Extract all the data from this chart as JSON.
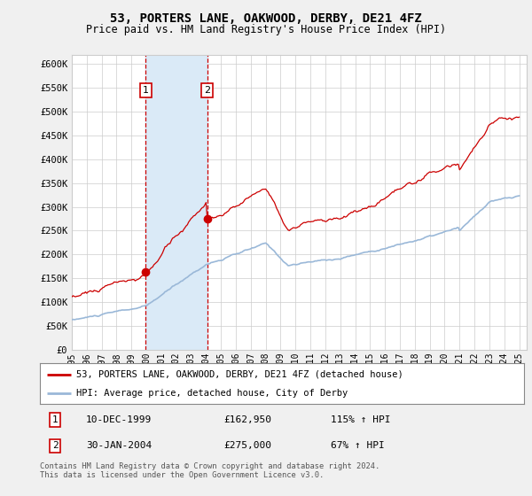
{
  "title": "53, PORTERS LANE, OAKWOOD, DERBY, DE21 4FZ",
  "subtitle": "Price paid vs. HM Land Registry's House Price Index (HPI)",
  "ylim": [
    0,
    620000
  ],
  "yticks": [
    0,
    50000,
    100000,
    150000,
    200000,
    250000,
    300000,
    350000,
    400000,
    450000,
    500000,
    550000,
    600000
  ],
  "ytick_labels": [
    "£0",
    "£50K",
    "£100K",
    "£150K",
    "£200K",
    "£250K",
    "£300K",
    "£350K",
    "£400K",
    "£450K",
    "£500K",
    "£550K",
    "£600K"
  ],
  "hpi_color": "#9ab8d8",
  "sale_color": "#cc0000",
  "purchase1_year": 1999.95,
  "purchase1_value": 162950,
  "purchase2_year": 2004.08,
  "purchase2_value": 275000,
  "legend_sale": "53, PORTERS LANE, OAKWOOD, DERBY, DE21 4FZ (detached house)",
  "legend_hpi": "HPI: Average price, detached house, City of Derby",
  "footnote": "Contains HM Land Registry data © Crown copyright and database right 2024.\nThis data is licensed under the Open Government Licence v3.0.",
  "bg_color": "#f0f0f0",
  "plot_bg": "#ffffff",
  "shade_color": "#daeaf7",
  "grid_color": "#cccccc"
}
